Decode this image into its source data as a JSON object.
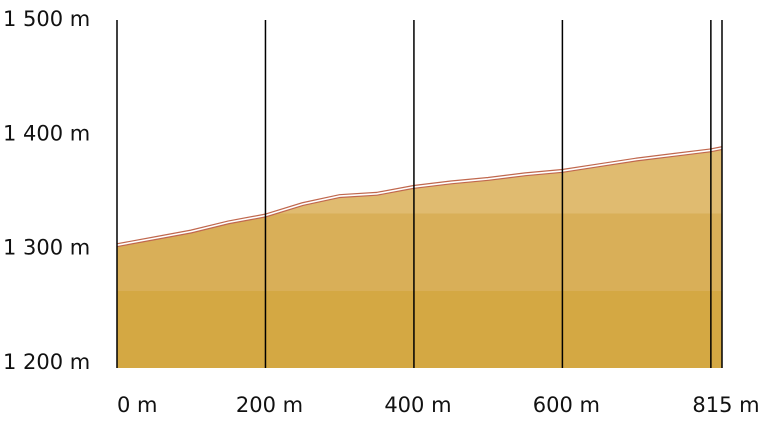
{
  "chart_data": {
    "type": "area",
    "x": [
      0,
      50,
      100,
      150,
      200,
      250,
      300,
      350,
      400,
      450,
      500,
      550,
      600,
      650,
      700,
      750,
      800,
      815
    ],
    "values": [
      1303,
      1309,
      1315,
      1323,
      1329,
      1339,
      1346,
      1348,
      1354,
      1358,
      1361,
      1365,
      1368,
      1373,
      1378,
      1382,
      1386,
      1388
    ],
    "xlim": [
      0,
      815
    ],
    "xticks": [
      {
        "value": 0,
        "label": "0 m"
      },
      {
        "value": 200,
        "label": "200 m"
      },
      {
        "value": 400,
        "label": "400 m"
      },
      {
        "value": 600,
        "label": "600 m"
      },
      {
        "value": 800,
        "label": null
      },
      {
        "value": 815,
        "label": "815 m"
      }
    ],
    "ylim": [
      1200,
      1500
    ],
    "yticks": [
      {
        "value": 1200,
        "label": "1 200 m"
      },
      {
        "value": 1300,
        "label": "1 300 m"
      },
      {
        "value": 1400,
        "label": "1 400 m"
      },
      {
        "value": 1500,
        "label": "1 500 m"
      }
    ],
    "grid": true
  }
}
